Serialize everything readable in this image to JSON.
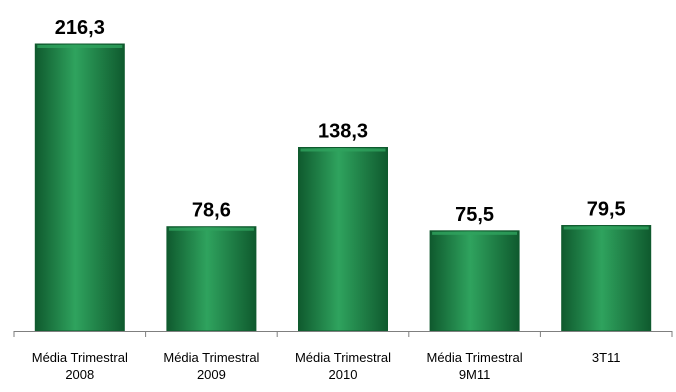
{
  "chart_data": {
    "type": "bar",
    "title": "",
    "xlabel": "",
    "ylabel": "",
    "categories": [
      [
        "Média Trimestral",
        "2008"
      ],
      [
        "Média Trimestral",
        "2009"
      ],
      [
        "Média Trimestral",
        "2010"
      ],
      [
        "Média Trimestral",
        "9M11"
      ],
      [
        "3T11"
      ]
    ],
    "values": [
      216.3,
      78.6,
      138.3,
      75.5,
      79.5
    ],
    "value_labels": [
      "216,3",
      "78,6",
      "138,3",
      "75,5",
      "79,5"
    ],
    "ylim": [
      0,
      216.3
    ],
    "grid": false,
    "legend": "none",
    "bar_color": "#1a7a43",
    "bar_highlight": "#2fa35e",
    "bar_shadow": "#0f5a2e",
    "axis_color": "#7f7f7f"
  }
}
